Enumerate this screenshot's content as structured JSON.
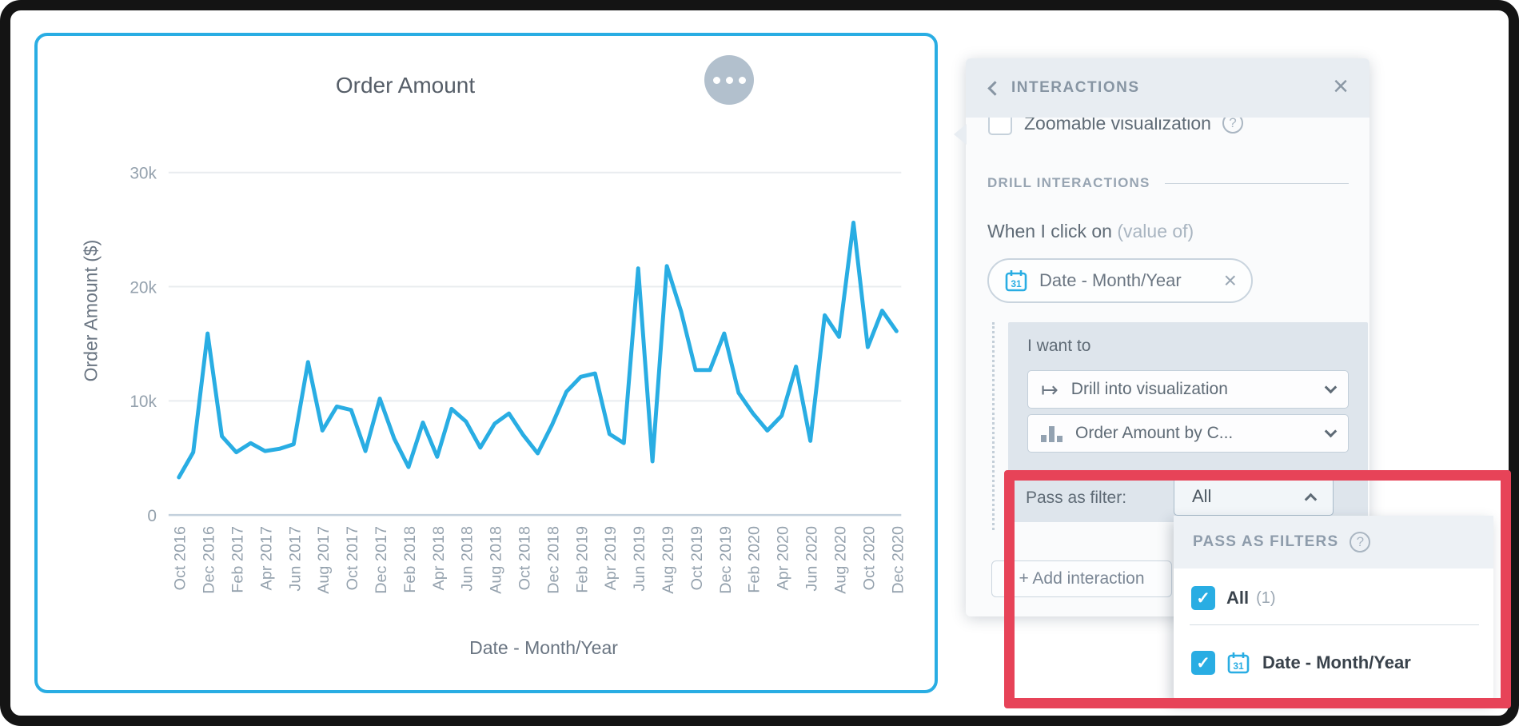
{
  "colors": {
    "accent": "#29ade3",
    "red": "#e74358"
  },
  "chart_data": {
    "type": "line",
    "title": "Order Amount",
    "xlabel": "Date - Month/Year",
    "ylabel": "Order Amount ($)",
    "legend": "none",
    "grid": true,
    "line_color": "#29ade3",
    "ylim": [
      0,
      31000
    ],
    "yticks": [
      "30k",
      "20k",
      "10k",
      "0"
    ],
    "ytick_values": [
      30000,
      20000,
      10000,
      0
    ],
    "x_tick_step": 2,
    "x": [
      "Oct 2016",
      "Nov 2016",
      "Dec 2016",
      "Jan 2017",
      "Feb 2017",
      "Mar 2017",
      "Apr 2017",
      "May 2017",
      "Jun 2017",
      "Jul 2017",
      "Aug 2017",
      "Sep 2017",
      "Oct 2017",
      "Nov 2017",
      "Dec 2017",
      "Jan 2018",
      "Feb 2018",
      "Mar 2018",
      "Apr 2018",
      "May 2018",
      "Jun 2018",
      "Jul 2018",
      "Aug 2018",
      "Sep 2018",
      "Oct 2018",
      "Nov 2018",
      "Dec 2018",
      "Jan 2019",
      "Feb 2019",
      "Mar 2019",
      "Apr 2019",
      "May 2019",
      "Jun 2019",
      "Jul 2019",
      "Aug 2019",
      "Sep 2019",
      "Oct 2019",
      "Nov 2019",
      "Dec 2019",
      "Jan 2020",
      "Feb 2020",
      "Mar 2020",
      "Apr 2020",
      "May 2020",
      "Jun 2020",
      "Jul 2020",
      "Aug 2020",
      "Sep 2020",
      "Oct 2020",
      "Nov 2020",
      "Dec 2020"
    ],
    "values": [
      3300,
      5500,
      15900,
      6900,
      5500,
      6300,
      5600,
      5800,
      6200,
      13400,
      7400,
      9500,
      9200,
      5600,
      10200,
      6700,
      4200,
      8100,
      5100,
      9300,
      8200,
      5900,
      8000,
      8900,
      7000,
      5400,
      7900,
      10800,
      12100,
      12400,
      7100,
      6300,
      21600,
      4700,
      21800,
      17800,
      12700,
      12700,
      15900,
      10700,
      8900,
      7400,
      8700,
      13000,
      6500,
      17500,
      15600,
      25600,
      14700,
      17900,
      16100
    ]
  },
  "panel": {
    "title": "INTERACTIONS",
    "zoomable_label": "Zoomable visualization",
    "section_title": "DRILL INTERACTIONS",
    "when_click_label": "When I click on",
    "when_click_hint": "(value of)",
    "chip_label": "Date - Month/Year",
    "card": {
      "i_want_to": "I want to",
      "action_select": "Drill into visualization",
      "target_select": "Order Amount by C...",
      "pass_as_filter_label": "Pass as filter:",
      "pass_value": "All"
    },
    "add_interaction": "+ Add interaction",
    "dropdown": {
      "header": "PASS AS FILTERS",
      "options": [
        {
          "label": "All",
          "count": "(1)",
          "checked": true
        },
        {
          "label": "Date - Month/Year",
          "checked": true
        }
      ]
    }
  },
  "icons": {
    "close": "×",
    "chip_remove": "×",
    "check": "✓",
    "drill": "↦",
    "help": "?"
  }
}
